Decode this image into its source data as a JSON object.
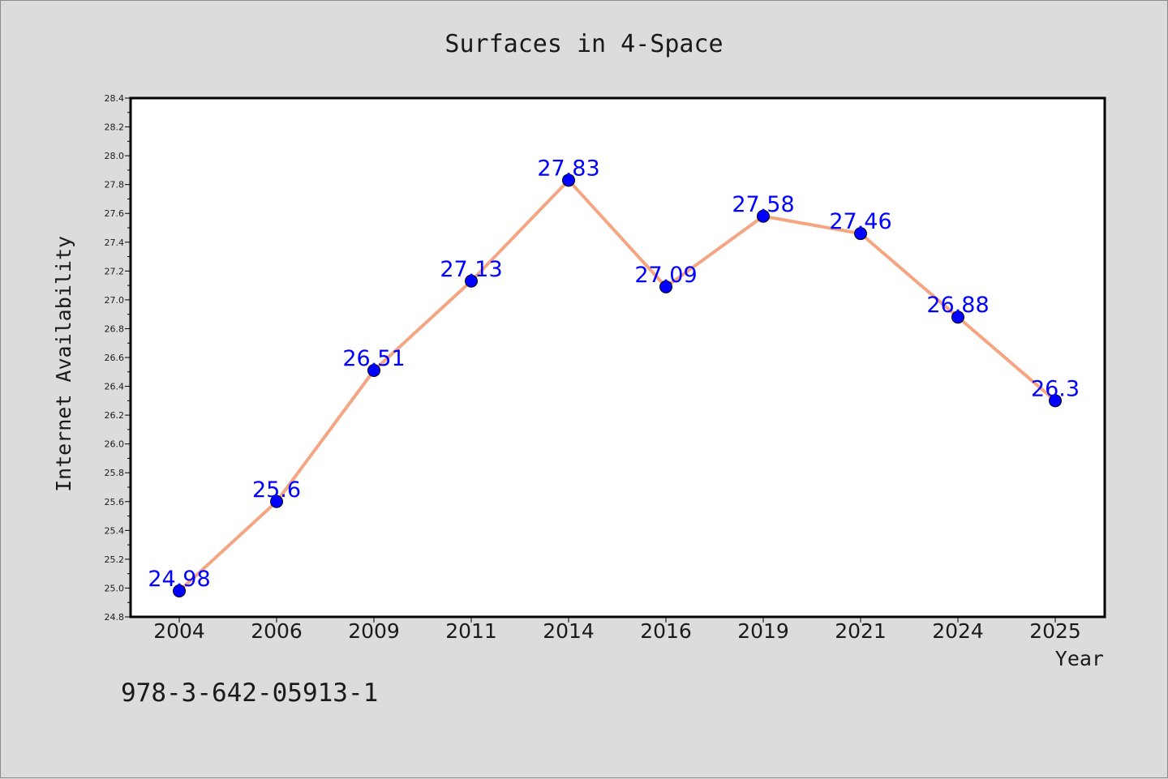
{
  "chart_data": {
    "type": "line",
    "title": "Surfaces in 4-Space",
    "xlabel": "Year",
    "ylabel": "Internet Availability",
    "categories": [
      "2004",
      "2006",
      "2009",
      "2011",
      "2014",
      "2016",
      "2019",
      "2021",
      "2024",
      "2025"
    ],
    "series": [
      {
        "values": [
          24.98,
          25.6,
          26.51,
          27.13,
          27.83,
          27.09,
          27.58,
          27.46,
          26.88,
          26.3
        ],
        "data_labels": [
          "24.98",
          "25.6",
          "26.51",
          "27.13",
          "27.83",
          "27.09",
          "27.58",
          "27.46",
          "26.88",
          "26.3"
        ],
        "line_color": "#f4a582",
        "marker_color": "#0000ff"
      }
    ],
    "ylim": [
      24.8,
      28.4
    ],
    "yticks": [
      "24.8",
      "25.0",
      "25.2",
      "25.4",
      "25.6",
      "25.8",
      "26.0",
      "26.2",
      "26.4",
      "26.6",
      "26.8",
      "27.0",
      "27.2",
      "27.4",
      "27.6",
      "27.8",
      "28.0",
      "28.2",
      "28.4"
    ],
    "grid": false,
    "legend": "none",
    "label_color": "#0000ff",
    "background_color": "#dcdcdc",
    "plot_background_color": "#ffffff"
  },
  "footer": {
    "text": "978-3-642-05913-1"
  }
}
